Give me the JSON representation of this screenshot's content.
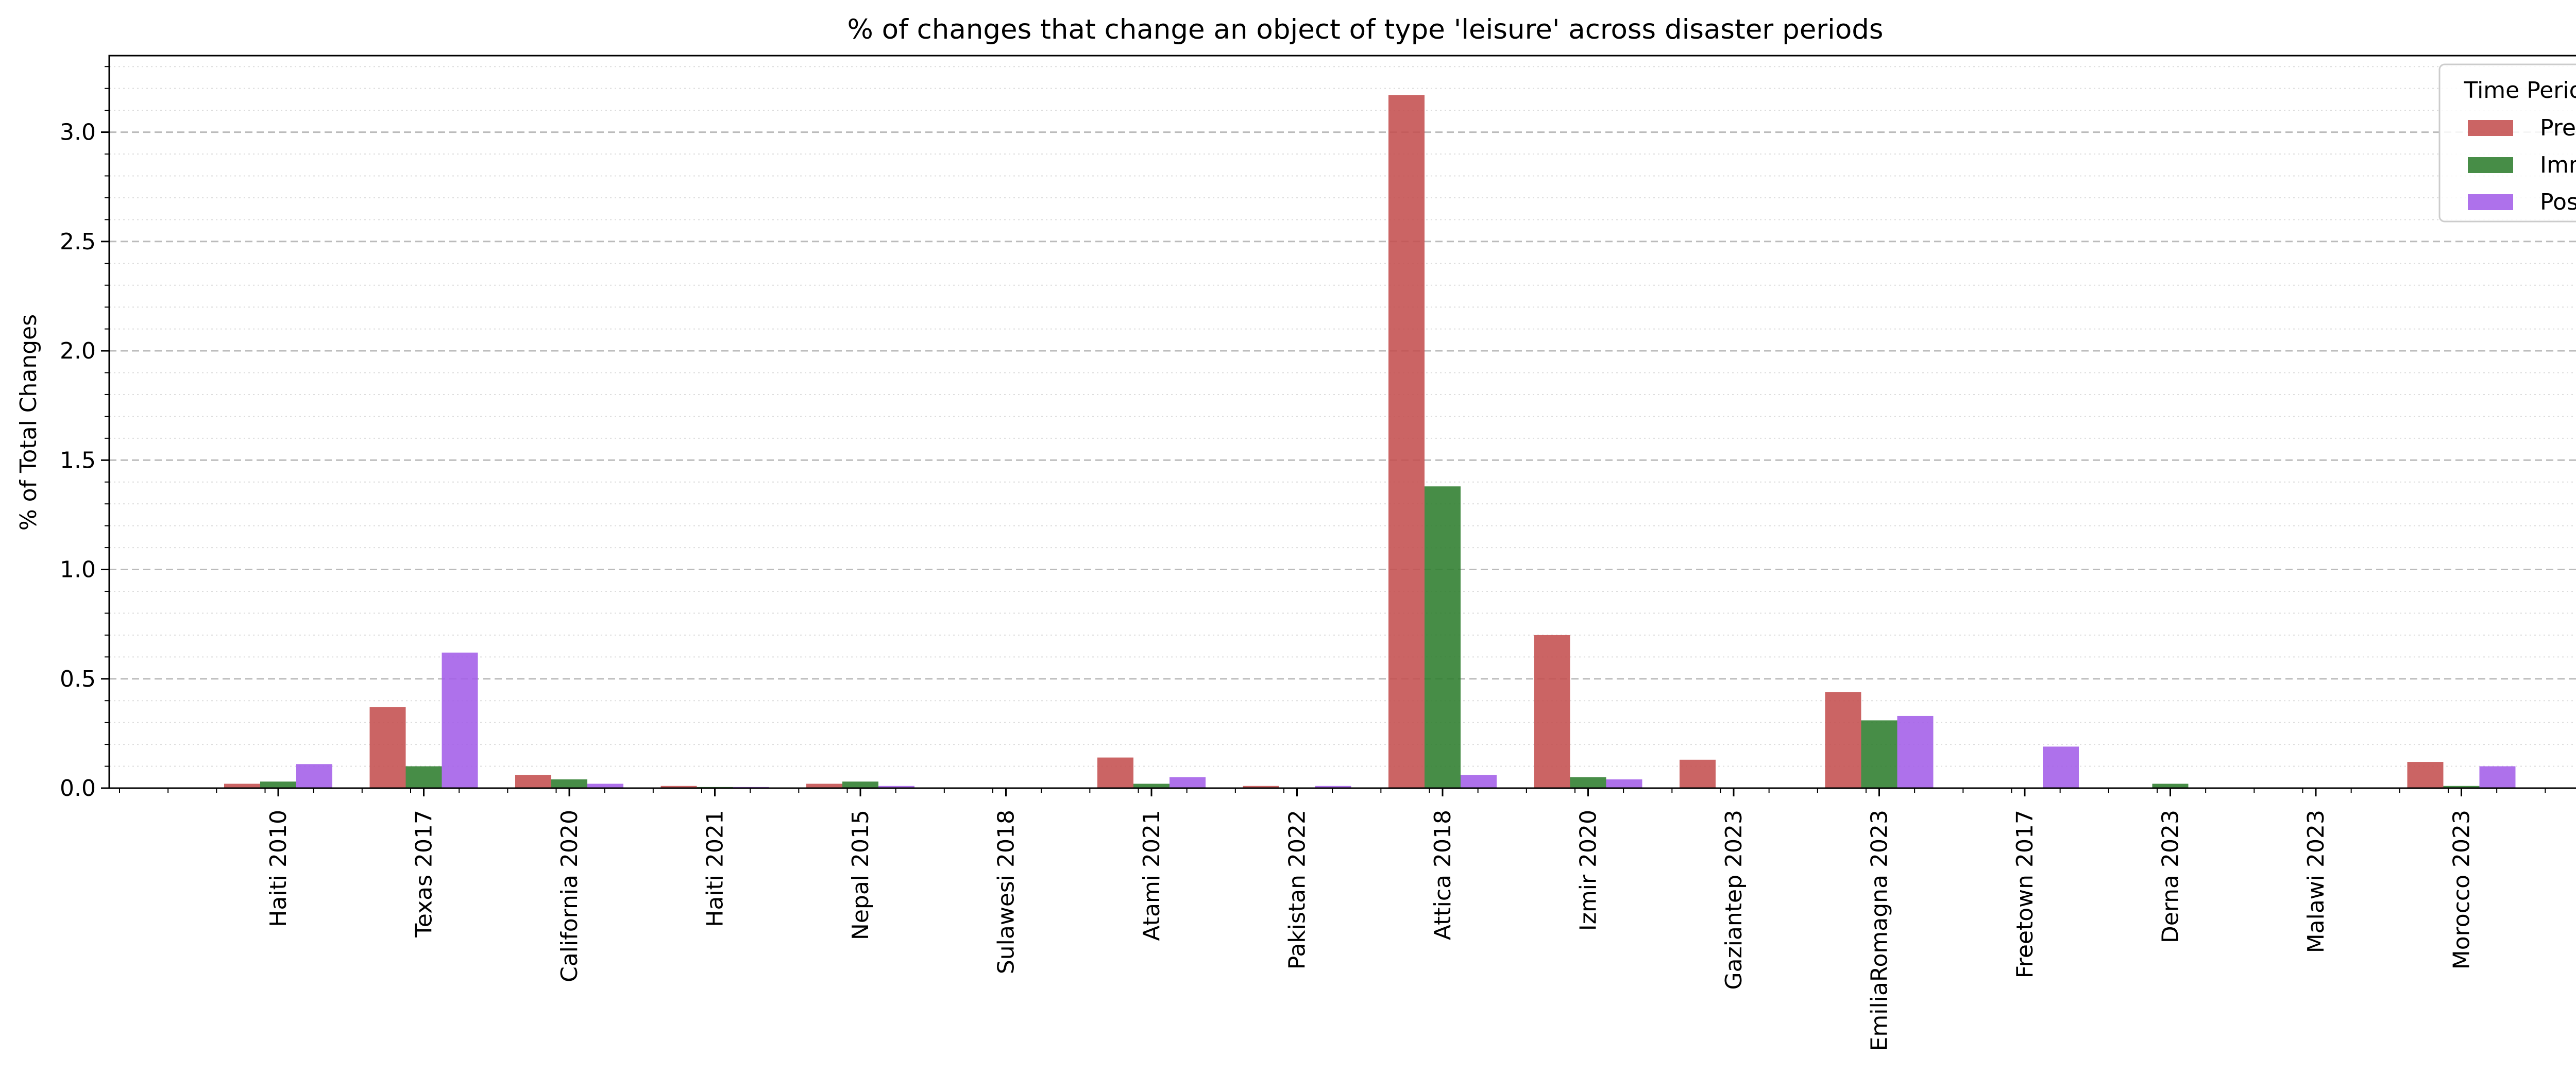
{
  "chart_data": {
    "type": "bar",
    "title": "% of changes that change an object of type 'leisure' across disaster periods",
    "xlabel": "",
    "ylabel": "% of Total Changes",
    "ylim": [
      0,
      3.35
    ],
    "yticks": [
      "0.0",
      "0.5",
      "1.0",
      "1.5",
      "2.0",
      "2.5",
      "3.0"
    ],
    "grid": "horizontal dashed major, dotted minor",
    "legend": {
      "title": "Time Period",
      "placement": "top-right"
    },
    "categories": [
      "Haiti 2010",
      "Texas 2017",
      "California 2020",
      "Haiti 2021",
      "Nepal 2015",
      "Sulawesi 2018",
      "Atami 2021",
      "Pakistan 2022",
      "Attica 2018",
      "Izmir 2020",
      "Gaziantep 2023",
      "EmiliaRomagna 2023",
      "Freetown 2017",
      "Derna 2023",
      "Malawi 2023",
      "Morocco 2023"
    ],
    "series": [
      {
        "name": "Pre",
        "color": "#c44e4e",
        "values": [
          0.02,
          0.37,
          0.06,
          0.01,
          0.02,
          0.0,
          0.14,
          0.01,
          3.17,
          0.7,
          0.13,
          0.44,
          0.0,
          0.0,
          0.0,
          0.12
        ]
      },
      {
        "name": "Imm",
        "color": "#2e7d2e",
        "values": [
          0.03,
          0.1,
          0.04,
          0.005,
          0.03,
          0.0,
          0.02,
          0.0,
          1.38,
          0.05,
          0.0,
          0.31,
          0.0,
          0.02,
          0.0,
          0.01
        ]
      },
      {
        "name": "Post",
        "color": "#a35de8",
        "values": [
          0.11,
          0.62,
          0.02,
          0.005,
          0.01,
          0.0,
          0.05,
          0.01,
          0.06,
          0.04,
          0.0,
          0.33,
          0.19,
          0.0,
          0.0,
          0.1
        ]
      }
    ]
  }
}
